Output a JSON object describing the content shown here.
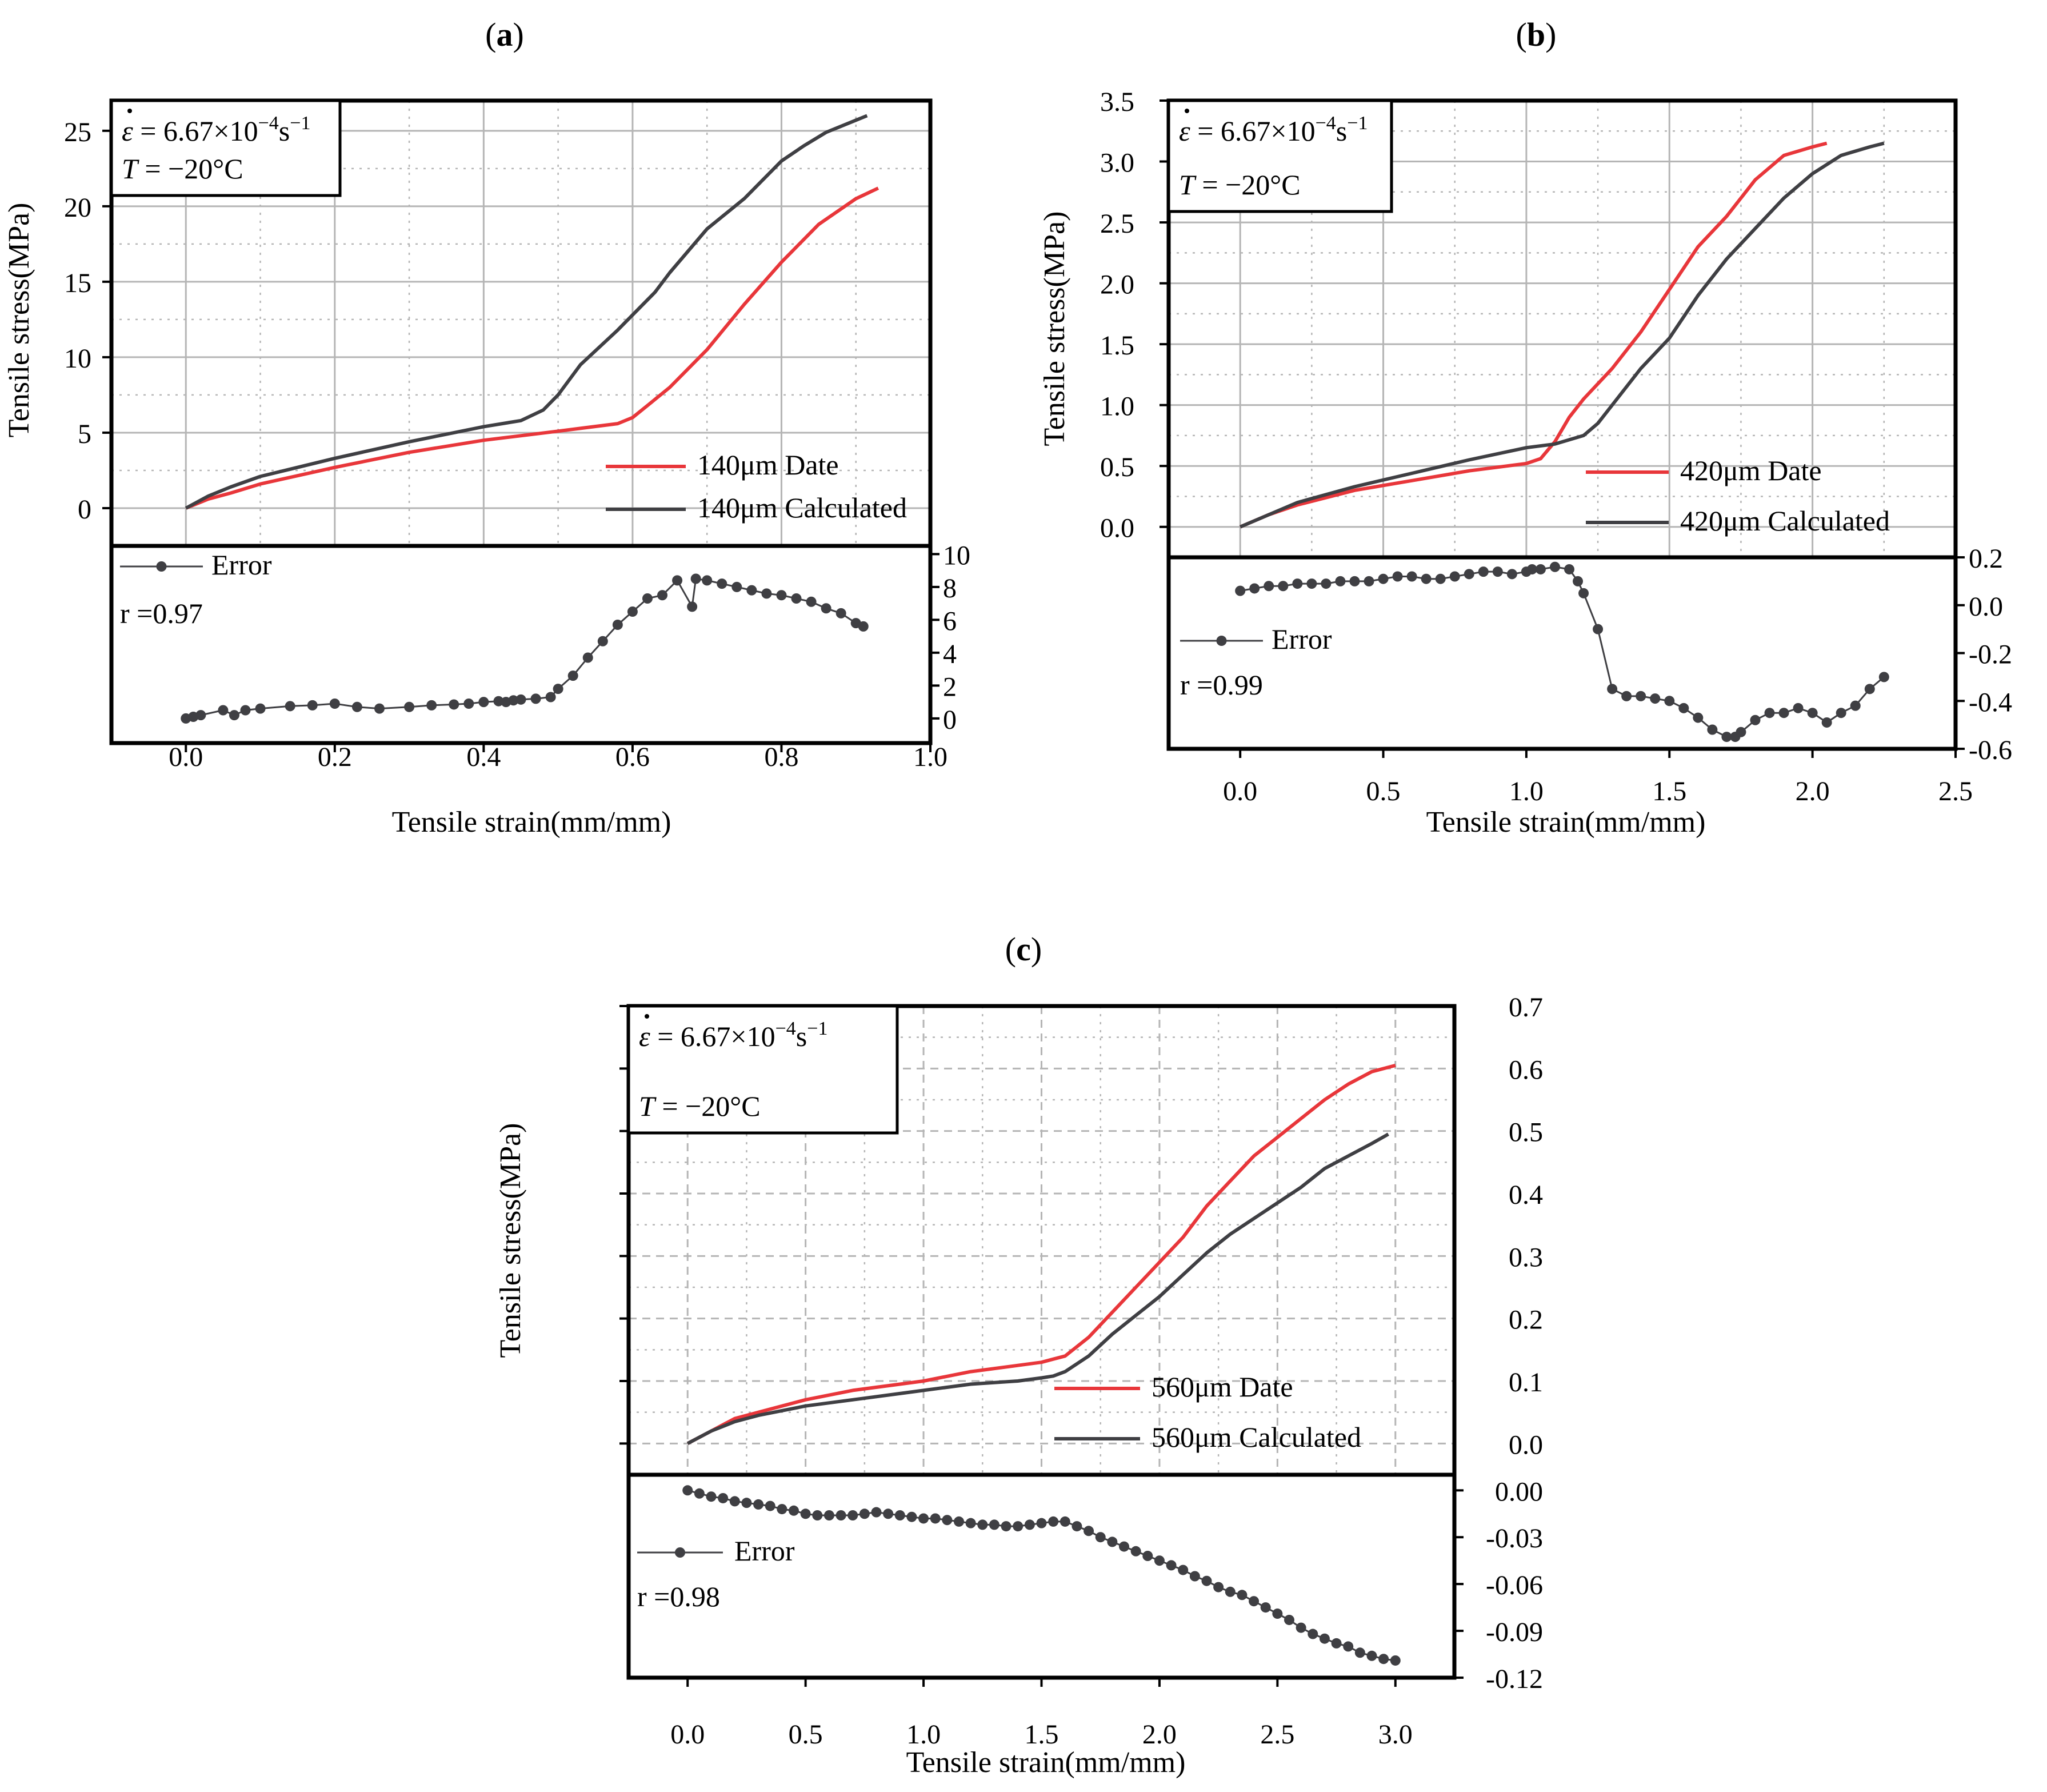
{
  "colors": {
    "data": "#e8363a",
    "calc": "#3f3f43",
    "error": "#3f3f43",
    "grid": "#b5b5b5",
    "frame": "#000000"
  },
  "chart_data": [
    {
      "id": "a",
      "type": "line",
      "panel_label": "(a)",
      "panel_letter": "a",
      "xlabel": "Tensile strain(mm/mm)",
      "ylabel": "Tensile stress(MPa)",
      "annotation": {
        "rate_prefix": "ε",
        "rate_value": " = 6.67×10",
        "rate_exp": "−4",
        "rate_unit": "s",
        "rate_unit_exp": "−1",
        "temp_symbol": "T",
        "temp_value": " = −20°C"
      },
      "x_range": [
        -0.1,
        1.0
      ],
      "x_ticks": [
        0.0,
        0.2,
        0.4,
        0.6,
        0.8,
        1.0
      ],
      "x_tick_labels": [
        "0.0",
        "0.2",
        "0.4",
        "0.6",
        "0.8",
        "1.0"
      ],
      "y_range": [
        -2.5,
        27.0
      ],
      "y_ticks": [
        0,
        5,
        10,
        15,
        20,
        25
      ],
      "y_tick_labels": [
        "0",
        "5",
        "10",
        "15",
        "20",
        "25"
      ],
      "grid": "solid",
      "series": [
        {
          "name": "140μm Date",
          "color": "#e8363a",
          "x": [
            0,
            0.03,
            0.06,
            0.1,
            0.2,
            0.3,
            0.4,
            0.5,
            0.58,
            0.6,
            0.62,
            0.65,
            0.7,
            0.75,
            0.8,
            0.85,
            0.9,
            0.93
          ],
          "y": [
            0,
            0.6,
            1.0,
            1.6,
            2.7,
            3.7,
            4.5,
            5.1,
            5.6,
            6.0,
            6.8,
            8.0,
            10.5,
            13.5,
            16.3,
            18.8,
            20.5,
            21.2
          ]
        },
        {
          "name": "140μm Calculated",
          "color": "#3f3f43",
          "x": [
            0,
            0.03,
            0.06,
            0.1,
            0.2,
            0.3,
            0.4,
            0.45,
            0.48,
            0.5,
            0.53,
            0.58,
            0.6,
            0.63,
            0.65,
            0.7,
            0.75,
            0.8,
            0.83,
            0.86,
            0.9,
            0.915
          ],
          "y": [
            0,
            0.8,
            1.4,
            2.1,
            3.3,
            4.4,
            5.4,
            5.8,
            6.5,
            7.5,
            9.5,
            11.8,
            12.8,
            14.3,
            15.6,
            18.5,
            20.5,
            23.0,
            24.0,
            24.9,
            25.7,
            26.0
          ]
        }
      ],
      "error": {
        "name": "Error",
        "r_label": "r =0.97",
        "y_range": [
          -1.5,
          10.5
        ],
        "y_ticks": [
          0,
          2,
          4,
          6,
          8,
          10
        ],
        "y_tick_labels": [
          "0",
          "2",
          "4",
          "6",
          "8",
          "10"
        ],
        "x": [
          0,
          0.01,
          0.02,
          0.05,
          0.065,
          0.08,
          0.1,
          0.14,
          0.17,
          0.2,
          0.23,
          0.26,
          0.3,
          0.33,
          0.36,
          0.38,
          0.4,
          0.42,
          0.43,
          0.44,
          0.45,
          0.47,
          0.49,
          0.5,
          0.52,
          0.54,
          0.56,
          0.58,
          0.6,
          0.62,
          0.64,
          0.66,
          0.68,
          0.685,
          0.7,
          0.72,
          0.74,
          0.76,
          0.78,
          0.8,
          0.82,
          0.84,
          0.86,
          0.88,
          0.9,
          0.91
        ],
        "y": [
          0,
          0.1,
          0.2,
          0.5,
          0.2,
          0.5,
          0.6,
          0.75,
          0.8,
          0.9,
          0.7,
          0.6,
          0.7,
          0.8,
          0.85,
          0.9,
          1.0,
          1.05,
          1.0,
          1.1,
          1.15,
          1.2,
          1.3,
          1.8,
          2.6,
          3.7,
          4.7,
          5.7,
          6.5,
          7.3,
          7.5,
          8.4,
          6.8,
          8.5,
          8.4,
          8.2,
          8.0,
          7.8,
          7.6,
          7.5,
          7.3,
          7.1,
          6.7,
          6.4,
          5.8,
          5.6
        ]
      },
      "legend_position": "bottom-right"
    },
    {
      "id": "b",
      "type": "line",
      "panel_label": "(b)",
      "panel_letter": "b",
      "xlabel": "Tensile strain(mm/mm)",
      "ylabel": "Tensile stress(MPa)",
      "annotation": {
        "rate_prefix": "ε",
        "rate_value": " = 6.67×10",
        "rate_exp": "−4",
        "rate_unit": "s",
        "rate_unit_exp": "−1",
        "temp_symbol": "T",
        "temp_value": " = −20°C"
      },
      "x_range": [
        -0.25,
        2.5
      ],
      "x_ticks": [
        0.0,
        0.5,
        1.0,
        1.5,
        2.0,
        2.5
      ],
      "x_tick_labels": [
        "0.0",
        "0.5",
        "1.0",
        "1.5",
        "2.0",
        "2.5"
      ],
      "y_range": [
        -0.25,
        3.5
      ],
      "y_ticks": [
        0.0,
        0.5,
        1.0,
        1.5,
        2.0,
        2.5,
        3.0,
        3.5
      ],
      "y_tick_labels": [
        "0.0",
        "0.5",
        "1.0",
        "1.5",
        "2.0",
        "2.5",
        "3.0",
        "3.5"
      ],
      "grid": "solid",
      "series": [
        {
          "name": "420μm Date",
          "color": "#e8363a",
          "x": [
            0,
            0.1,
            0.2,
            0.4,
            0.6,
            0.8,
            1.0,
            1.05,
            1.1,
            1.15,
            1.2,
            1.3,
            1.4,
            1.5,
            1.6,
            1.7,
            1.8,
            1.9,
            2.0,
            2.05
          ],
          "y": [
            0,
            0.1,
            0.18,
            0.3,
            0.38,
            0.46,
            0.52,
            0.56,
            0.7,
            0.9,
            1.05,
            1.3,
            1.6,
            1.95,
            2.3,
            2.55,
            2.85,
            3.05,
            3.12,
            3.15
          ]
        },
        {
          "name": "420μm Calculated",
          "color": "#3f3f43",
          "x": [
            0,
            0.2,
            0.4,
            0.6,
            0.8,
            1.0,
            1.1,
            1.2,
            1.25,
            1.3,
            1.4,
            1.5,
            1.6,
            1.7,
            1.8,
            1.9,
            2.0,
            2.1,
            2.2,
            2.25
          ],
          "y": [
            0,
            0.2,
            0.33,
            0.44,
            0.55,
            0.65,
            0.68,
            0.75,
            0.85,
            1.0,
            1.3,
            1.55,
            1.9,
            2.2,
            2.45,
            2.7,
            2.9,
            3.05,
            3.12,
            3.15
          ]
        }
      ],
      "error": {
        "name": "Error",
        "r_label": "r =0.99",
        "y_range": [
          -0.6,
          0.2
        ],
        "y_ticks": [
          -0.6,
          -0.4,
          -0.2,
          0.0,
          0.2
        ],
        "y_tick_labels": [
          "-0.6",
          "-0.4",
          "-0.2",
          "0.0",
          "0.2"
        ],
        "x": [
          0,
          0.05,
          0.1,
          0.15,
          0.2,
          0.25,
          0.3,
          0.35,
          0.4,
          0.45,
          0.5,
          0.55,
          0.6,
          0.65,
          0.7,
          0.75,
          0.8,
          0.85,
          0.9,
          0.95,
          1.0,
          1.02,
          1.05,
          1.1,
          1.15,
          1.18,
          1.2,
          1.25,
          1.3,
          1.35,
          1.4,
          1.45,
          1.5,
          1.55,
          1.6,
          1.65,
          1.7,
          1.73,
          1.75,
          1.8,
          1.85,
          1.9,
          1.95,
          2.0,
          2.05,
          2.1,
          2.15,
          2.2,
          2.25
        ],
        "y": [
          0.06,
          0.07,
          0.08,
          0.08,
          0.09,
          0.09,
          0.09,
          0.1,
          0.1,
          0.1,
          0.11,
          0.12,
          0.12,
          0.11,
          0.11,
          0.12,
          0.13,
          0.14,
          0.14,
          0.13,
          0.14,
          0.15,
          0.15,
          0.16,
          0.15,
          0.1,
          0.05,
          -0.1,
          -0.35,
          -0.38,
          -0.38,
          -0.39,
          -0.4,
          -0.43,
          -0.47,
          -0.52,
          -0.55,
          -0.55,
          -0.53,
          -0.48,
          -0.45,
          -0.45,
          -0.43,
          -0.45,
          -0.49,
          -0.45,
          -0.42,
          -0.35,
          -0.3
        ]
      },
      "legend_position": "bottom-right"
    },
    {
      "id": "c",
      "type": "line",
      "panel_label": "(c)",
      "panel_letter": "c",
      "xlabel": "Tensile strain(mm/mm)",
      "ylabel": "Tensile stress(MPa)",
      "annotation": {
        "rate_prefix": "ε",
        "rate_value": " = 6.67×10",
        "rate_exp": "−4",
        "rate_unit": "s",
        "rate_unit_exp": "−1",
        "temp_symbol": "T",
        "temp_value": " = −20°C"
      },
      "x_range": [
        -0.25,
        3.25
      ],
      "x_ticks": [
        0.0,
        0.5,
        1.0,
        1.5,
        2.0,
        2.5,
        3.0
      ],
      "x_tick_labels": [
        "0.0",
        "0.5",
        "1.0",
        "1.5",
        "2.0",
        "2.5",
        "3.0"
      ],
      "y_range": [
        -0.05,
        0.7
      ],
      "y_ticks": [
        0.0,
        0.1,
        0.2,
        0.3,
        0.4,
        0.5,
        0.6,
        0.7
      ],
      "y_tick_labels": [
        "0.0",
        "0.1",
        "0.2",
        "0.3",
        "0.4",
        "0.5",
        "0.6",
        "0.7"
      ],
      "grid": "dashed",
      "series": [
        {
          "name": "560μm Date",
          "color": "#e8363a",
          "x": [
            0,
            0.1,
            0.2,
            0.3,
            0.5,
            0.7,
            0.9,
            1.0,
            1.2,
            1.4,
            1.5,
            1.55,
            1.6,
            1.7,
            1.8,
            1.9,
            2.0,
            2.1,
            2.2,
            2.3,
            2.4,
            2.5,
            2.6,
            2.7,
            2.8,
            2.9,
            3.0
          ],
          "y": [
            0,
            0.02,
            0.04,
            0.05,
            0.07,
            0.085,
            0.095,
            0.1,
            0.115,
            0.125,
            0.13,
            0.135,
            0.14,
            0.17,
            0.21,
            0.25,
            0.29,
            0.33,
            0.38,
            0.42,
            0.46,
            0.49,
            0.52,
            0.55,
            0.575,
            0.595,
            0.605
          ]
        },
        {
          "name": "560μm Calculated",
          "color": "#3f3f43",
          "x": [
            0,
            0.1,
            0.2,
            0.3,
            0.5,
            0.7,
            0.9,
            1.0,
            1.2,
            1.4,
            1.5,
            1.55,
            1.6,
            1.7,
            1.8,
            1.9,
            2.0,
            2.1,
            2.2,
            2.3,
            2.4,
            2.5,
            2.6,
            2.7,
            2.8,
            2.9,
            2.97
          ],
          "y": [
            0,
            0.02,
            0.035,
            0.045,
            0.06,
            0.07,
            0.08,
            0.085,
            0.095,
            0.1,
            0.105,
            0.108,
            0.115,
            0.14,
            0.175,
            0.205,
            0.235,
            0.27,
            0.305,
            0.335,
            0.36,
            0.385,
            0.41,
            0.44,
            0.46,
            0.48,
            0.495
          ]
        }
      ],
      "error": {
        "name": "Error",
        "r_label": "r =0.98",
        "y_range": [
          -0.12,
          0.01
        ],
        "y_ticks": [
          0.0,
          -0.03,
          -0.06,
          -0.09,
          -0.12
        ],
        "y_tick_labels": [
          "0.00",
          "-0.03",
          "-0.06",
          "-0.09",
          "-0.12"
        ],
        "x": [
          0,
          0.05,
          0.1,
          0.15,
          0.2,
          0.25,
          0.3,
          0.35,
          0.4,
          0.45,
          0.5,
          0.55,
          0.6,
          0.65,
          0.7,
          0.75,
          0.8,
          0.85,
          0.9,
          0.95,
          1.0,
          1.05,
          1.1,
          1.15,
          1.2,
          1.25,
          1.3,
          1.35,
          1.4,
          1.45,
          1.5,
          1.55,
          1.6,
          1.65,
          1.7,
          1.75,
          1.8,
          1.85,
          1.9,
          1.95,
          2.0,
          2.05,
          2.1,
          2.15,
          2.2,
          2.25,
          2.3,
          2.35,
          2.4,
          2.45,
          2.5,
          2.55,
          2.6,
          2.65,
          2.7,
          2.75,
          2.8,
          2.85,
          2.9,
          2.95,
          3.0
        ],
        "y": [
          0.0,
          -0.002,
          -0.004,
          -0.005,
          -0.007,
          -0.008,
          -0.009,
          -0.01,
          -0.012,
          -0.013,
          -0.015,
          -0.016,
          -0.016,
          -0.016,
          -0.016,
          -0.015,
          -0.014,
          -0.015,
          -0.016,
          -0.017,
          -0.018,
          -0.018,
          -0.019,
          -0.02,
          -0.021,
          -0.022,
          -0.022,
          -0.023,
          -0.023,
          -0.022,
          -0.021,
          -0.02,
          -0.02,
          -0.023,
          -0.026,
          -0.03,
          -0.033,
          -0.036,
          -0.039,
          -0.042,
          -0.045,
          -0.048,
          -0.051,
          -0.055,
          -0.058,
          -0.062,
          -0.065,
          -0.067,
          -0.071,
          -0.075,
          -0.079,
          -0.083,
          -0.088,
          -0.092,
          -0.095,
          -0.098,
          -0.1,
          -0.104,
          -0.106,
          -0.108,
          -0.109
        ]
      },
      "legend_position": "bottom-right"
    }
  ]
}
